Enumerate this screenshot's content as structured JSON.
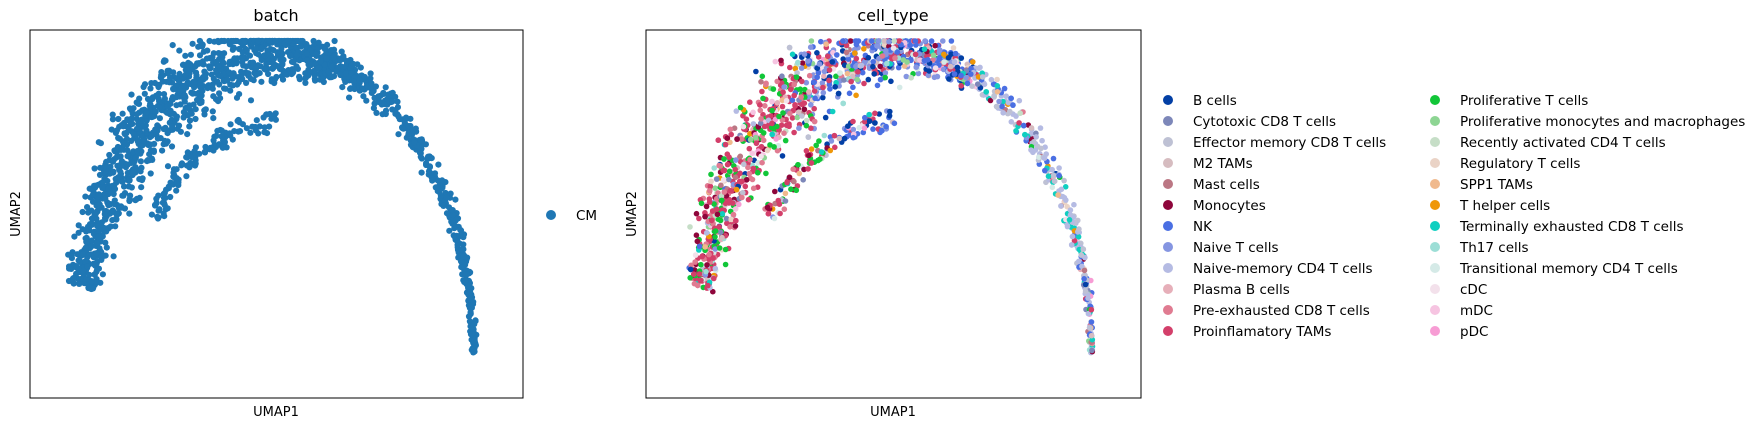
{
  "chart_data": [
    {
      "type": "scatter",
      "title": "batch",
      "xlabel": "UMAP1",
      "ylabel": "UMAP2",
      "grid": false,
      "ticks": false,
      "legend_placement": "right",
      "series": [
        {
          "name": "CM",
          "color": "#1f77b4"
        }
      ]
    },
    {
      "type": "scatter",
      "title": "cell_type",
      "xlabel": "UMAP1",
      "ylabel": "UMAP2",
      "grid": false,
      "ticks": false,
      "legend_placement": "right",
      "series": [
        {
          "name": "B cells",
          "color": "#023fa5"
        },
        {
          "name": "Cytotoxic CD8 T cells",
          "color": "#7d87b9"
        },
        {
          "name": "Effector memory CD8 T cells",
          "color": "#bec1d4"
        },
        {
          "name": "M2 TAMs",
          "color": "#d6bcc0"
        },
        {
          "name": "Mast cells",
          "color": "#bb7784"
        },
        {
          "name": "Monocytes",
          "color": "#8e063b"
        },
        {
          "name": "NK",
          "color": "#4a6fe3"
        },
        {
          "name": "Naive T cells",
          "color": "#8595e1"
        },
        {
          "name": "Naive-memory CD4 T cells",
          "color": "#b5bbe3"
        },
        {
          "name": "Plasma B cells",
          "color": "#e6afb9"
        },
        {
          "name": "Pre-exhausted CD8 T cells",
          "color": "#e07b91"
        },
        {
          "name": "Proinflamatory TAMs",
          "color": "#d33f6a"
        },
        {
          "name": "Proliferative T cells",
          "color": "#11c638"
        },
        {
          "name": "Proliferative monocytes and macrophages",
          "color": "#8dd593"
        },
        {
          "name": "Recently activated CD4 T cells",
          "color": "#c6dec7"
        },
        {
          "name": "Regulatory T cells",
          "color": "#ead3c6"
        },
        {
          "name": "SPP1 TAMs",
          "color": "#f0b98d"
        },
        {
          "name": "T helper cells",
          "color": "#ef9708"
        },
        {
          "name": "Terminally exhausted CD8 T cells",
          "color": "#0fcfc0"
        },
        {
          "name": "Th17 cells",
          "color": "#9cded6"
        },
        {
          "name": "Transitional memory CD4 T cells",
          "color": "#d5eae7"
        },
        {
          "name": "cDC",
          "color": "#f3e1eb"
        },
        {
          "name": "mDC",
          "color": "#f6c4e1"
        },
        {
          "name": "pDC",
          "color": "#f79cd4"
        }
      ]
    }
  ]
}
